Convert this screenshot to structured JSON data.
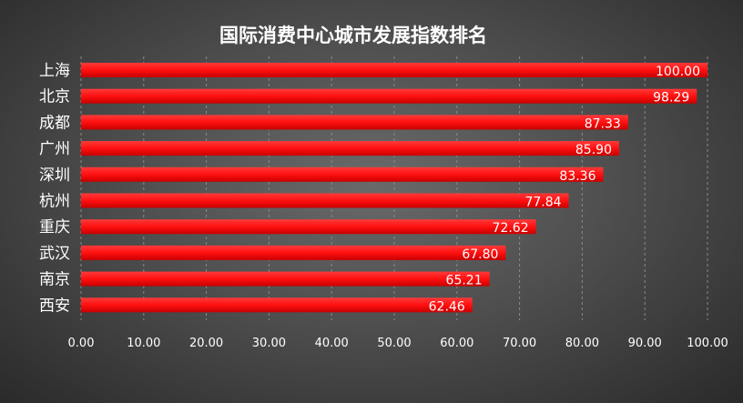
{
  "chart_data": {
    "type": "bar",
    "orientation": "horizontal",
    "title": "国际消费中心城市发展指数排名",
    "categories": [
      "上海",
      "北京",
      "成都",
      "广州",
      "深圳",
      "杭州",
      "重庆",
      "武汉",
      "南京",
      "西安"
    ],
    "values": [
      100.0,
      98.29,
      87.33,
      85.9,
      83.36,
      77.84,
      72.62,
      67.8,
      65.21,
      62.46
    ],
    "value_labels": [
      "100.00",
      "98.29",
      "87.33",
      "85.90",
      "83.36",
      "77.84",
      "72.62",
      "67.80",
      "65.21",
      "62.46"
    ],
    "xlim": [
      0,
      100
    ],
    "x_ticks": [
      "0.00",
      "10.00",
      "20.00",
      "30.00",
      "40.00",
      "50.00",
      "60.00",
      "70.00",
      "80.00",
      "90.00",
      "100.00"
    ],
    "xlabel": "",
    "ylabel": "",
    "grid": true,
    "legend": "none",
    "bar_color": "#ff1a1a",
    "bar_color_dark": "#d40000"
  }
}
